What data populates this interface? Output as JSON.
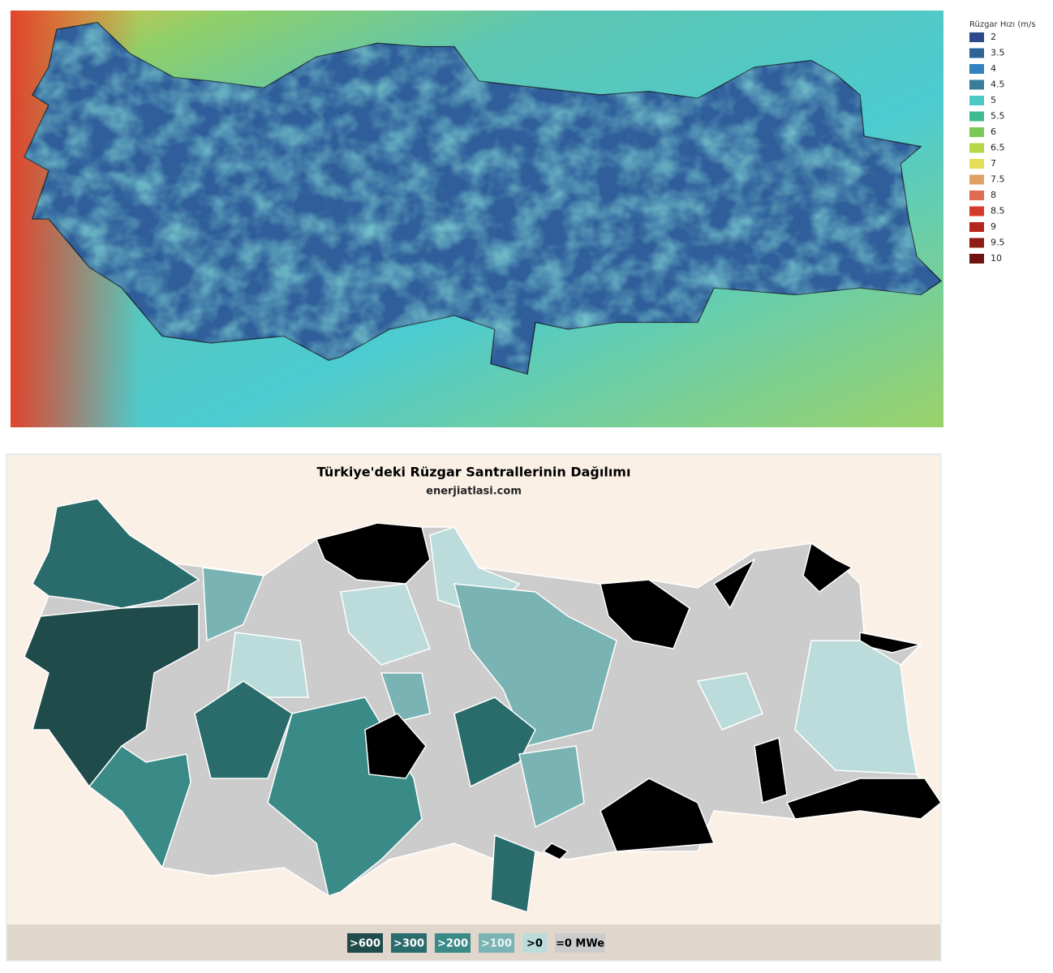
{
  "wind_map": {
    "legend_title": "Rüzgar Hızı (m/s",
    "legend": [
      {
        "label": "2",
        "color": "#2b4a8c"
      },
      {
        "label": "3.5",
        "color": "#2f6497"
      },
      {
        "label": "4",
        "color": "#3182bd"
      },
      {
        "label": "4.5",
        "color": "#3a7d99"
      },
      {
        "label": "5",
        "color": "#4cc9c3"
      },
      {
        "label": "5.5",
        "color": "#3dbb8f"
      },
      {
        "label": "6",
        "color": "#7cc95a"
      },
      {
        "label": "6.5",
        "color": "#b9d64a"
      },
      {
        "label": "7",
        "color": "#e4df58"
      },
      {
        "label": "7.5",
        "color": "#e0a064"
      },
      {
        "label": "8",
        "color": "#df6c52"
      },
      {
        "label": "8.5",
        "color": "#d43a2a"
      },
      {
        "label": "9",
        "color": "#b5261c"
      },
      {
        "label": "9.5",
        "color": "#8f1d14"
      },
      {
        "label": "10",
        "color": "#6e1410"
      }
    ]
  },
  "plant_map": {
    "title": "Türkiye'deki Rüzgar Santrallerinin Dağılımı",
    "subtitle": "enerjiatlasi.com",
    "legend": [
      {
        "label": ">600",
        "color": "#1f4b4b",
        "text": "#ffffff"
      },
      {
        "label": ">300",
        "color": "#2a6b6b",
        "text": "#ffffff"
      },
      {
        "label": ">200",
        "color": "#3a8a87",
        "text": "#ffffff"
      },
      {
        "label": ">100",
        "color": "#7ab3b3",
        "text": "#e8f4f4"
      },
      {
        "label": ">0",
        "color": "#bcdcdc",
        "text": "#000000"
      },
      {
        "label": "=0 MWe",
        "color": "#cccccc",
        "text": "#000000"
      }
    ]
  }
}
